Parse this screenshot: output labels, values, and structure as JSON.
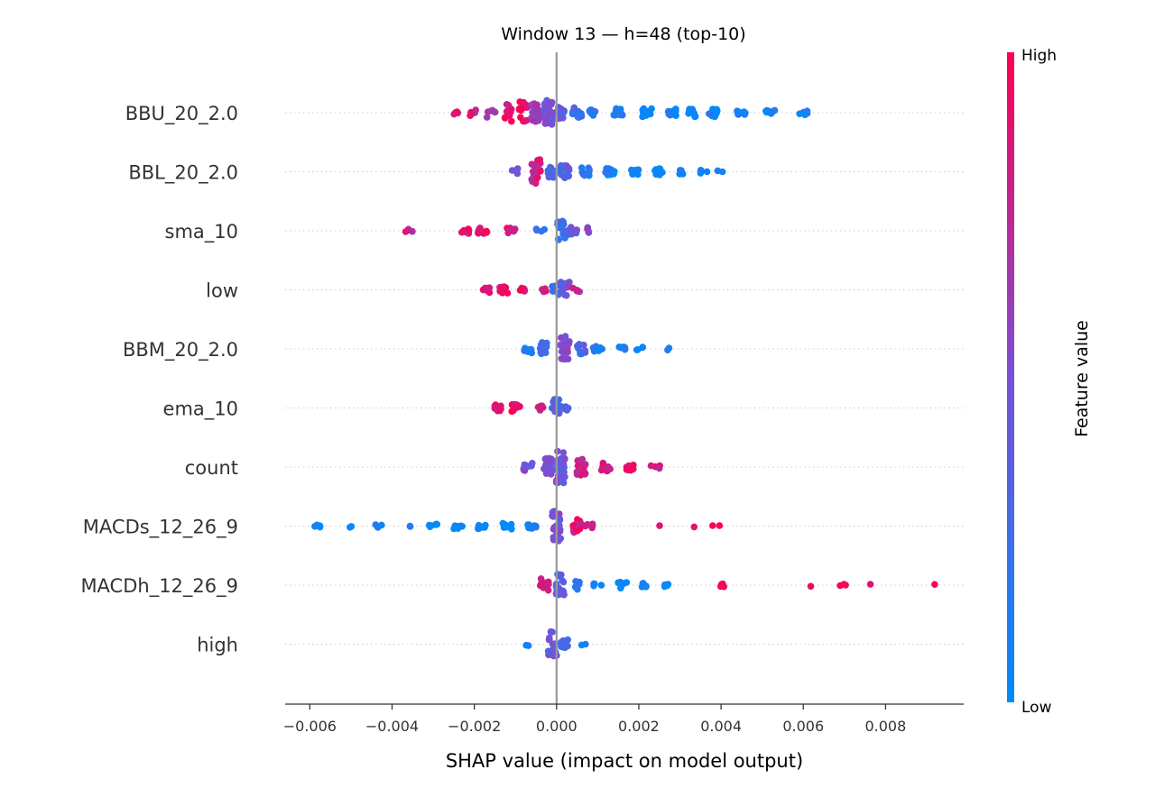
{
  "chart_data": {
    "type": "scatter",
    "subtype": "shap-beeswarm",
    "title": "Window 13 — h=48 (top-10)",
    "xlabel": "SHAP value (impact on model output)",
    "xlim": [
      -0.0066,
      0.0099
    ],
    "xticks": [
      -0.006,
      -0.004,
      -0.002,
      0.0,
      0.002,
      0.004,
      0.006,
      0.008
    ],
    "xtick_labels": [
      "−0.006",
      "−0.004",
      "−0.002",
      "0.000",
      "0.002",
      "0.004",
      "0.006",
      "0.008"
    ],
    "zero_line": 0.0,
    "grid": false,
    "features": [
      {
        "name": "BBU_20_2.0",
        "clusters": [
          [
            -0.0024,
            0,
            0.85,
            4
          ],
          [
            -0.002,
            0.2,
            0.8,
            5
          ],
          [
            -0.0016,
            0.5,
            0.7,
            6
          ],
          [
            -0.0012,
            0.7,
            0.9,
            12
          ],
          [
            -0.0008,
            0.6,
            0.95,
            16
          ],
          [
            -0.0005,
            0.3,
            0.6,
            20
          ],
          [
            -0.0002,
            0.4,
            0.5,
            30
          ],
          [
            0.0001,
            0.2,
            0.4,
            14
          ],
          [
            0.0005,
            0.15,
            0.3,
            12
          ],
          [
            0.0009,
            0.0,
            0.2,
            12
          ],
          [
            0.0015,
            0.0,
            0.1,
            14
          ],
          [
            0.0022,
            0,
            0.05,
            14
          ],
          [
            0.0028,
            0,
            0.05,
            12
          ],
          [
            0.0033,
            0,
            0.05,
            14
          ],
          [
            0.0038,
            0,
            0.08,
            14
          ],
          [
            0.0045,
            0,
            0.1,
            8
          ],
          [
            0.0052,
            0,
            0.1,
            8
          ],
          [
            0.006,
            0,
            0.1,
            6
          ]
        ]
      },
      {
        "name": "BBL_20_2.0",
        "clusters": [
          [
            -0.001,
            0.15,
            0.4,
            6
          ],
          [
            -0.0005,
            0.4,
            0.8,
            28
          ],
          [
            -0.0001,
            0.3,
            0.3,
            12
          ],
          [
            0.0002,
            0.1,
            0.35,
            18
          ],
          [
            0.0007,
            0.05,
            0.2,
            12
          ],
          [
            0.0013,
            0,
            0.08,
            12
          ],
          [
            0.0019,
            0,
            0.06,
            10
          ],
          [
            0.0025,
            0,
            0.05,
            10
          ],
          [
            0.003,
            0,
            0.05,
            6
          ],
          [
            0.0036,
            0,
            0.05,
            4
          ],
          [
            0.004,
            0,
            0.05,
            2
          ]
        ]
      },
      {
        "name": "sma_10",
        "clusters": [
          [
            -0.0036,
            0,
            0.8,
            4
          ],
          [
            -0.0022,
            0,
            0.9,
            8
          ],
          [
            -0.0018,
            0,
            0.95,
            12
          ],
          [
            -0.0011,
            0,
            0.85,
            8
          ],
          [
            -0.0004,
            0,
            0.15,
            4
          ],
          [
            0.0001,
            0.5,
            0.3,
            16
          ],
          [
            0.0004,
            0,
            0.4,
            12
          ],
          [
            0.0008,
            0.4,
            0.55,
            4
          ]
        ]
      },
      {
        "name": "low",
        "clusters": [
          [
            -0.0017,
            0,
            0.85,
            8
          ],
          [
            -0.0013,
            0,
            0.95,
            12
          ],
          [
            -0.0008,
            0,
            0.85,
            6
          ],
          [
            -0.0003,
            0,
            0.8,
            4
          ],
          [
            0.0,
            0.3,
            0.2,
            8
          ],
          [
            0.0002,
            0.4,
            0.45,
            14
          ],
          [
            0.0005,
            0,
            0.7,
            4
          ]
        ]
      },
      {
        "name": "BBM_20_2.0",
        "clusters": [
          [
            -0.0007,
            0.2,
            0.1,
            8
          ],
          [
            -0.0003,
            0.3,
            0.2,
            12
          ],
          [
            0.0002,
            0.5,
            0.5,
            22
          ],
          [
            0.0006,
            0.3,
            0.3,
            10
          ],
          [
            0.001,
            0,
            0.1,
            8
          ],
          [
            0.0016,
            0,
            0.1,
            6
          ],
          [
            0.002,
            0,
            0.05,
            4
          ],
          [
            0.0027,
            0,
            0.05,
            2
          ]
        ]
      },
      {
        "name": "ema_10",
        "clusters": [
          [
            -0.0014,
            0,
            0.9,
            10
          ],
          [
            -0.001,
            0,
            0.95,
            12
          ],
          [
            -0.0004,
            0,
            0.8,
            6
          ],
          [
            0.0,
            0.45,
            0.3,
            14
          ],
          [
            0.0003,
            0,
            0.4,
            6
          ]
        ]
      },
      {
        "name": "count",
        "clusters": [
          [
            -0.0007,
            0.15,
            0.5,
            8
          ],
          [
            -0.0002,
            0.3,
            0.5,
            18
          ],
          [
            0.0001,
            0.6,
            0.45,
            28
          ],
          [
            0.0006,
            0.35,
            0.8,
            16
          ],
          [
            0.0012,
            0,
            0.85,
            14
          ],
          [
            0.0018,
            0,
            0.9,
            10
          ],
          [
            0.0024,
            0,
            0.85,
            4
          ]
        ]
      },
      {
        "name": "MACDs_12_26_9",
        "clusters": [
          [
            -0.0058,
            0,
            0.05,
            4
          ],
          [
            -0.005,
            0,
            0.05,
            2
          ],
          [
            -0.0043,
            0,
            0.05,
            3
          ],
          [
            -0.0036,
            0,
            0.05,
            2
          ],
          [
            -0.003,
            0,
            0.05,
            6
          ],
          [
            -0.0024,
            0,
            0.05,
            8
          ],
          [
            -0.0018,
            0,
            0.05,
            8
          ],
          [
            -0.0012,
            0,
            0.05,
            10
          ],
          [
            -0.0006,
            0,
            0.1,
            10
          ],
          [
            0.0,
            0.55,
            0.5,
            30
          ],
          [
            0.0005,
            0.35,
            0.85,
            14
          ],
          [
            0.0008,
            0,
            0.9,
            6
          ],
          [
            0.0026,
            0,
            0.9,
            1
          ],
          [
            0.0034,
            0,
            0.85,
            1
          ],
          [
            0.0039,
            0,
            0.95,
            2
          ]
        ]
      },
      {
        "name": "MACDh_12_26_9",
        "clusters": [
          [
            -0.0003,
            0.3,
            0.8,
            12
          ],
          [
            0.0001,
            0.5,
            0.4,
            20
          ],
          [
            0.0005,
            0.2,
            0.15,
            8
          ],
          [
            0.001,
            0,
            0.05,
            4
          ],
          [
            0.0016,
            0,
            0.05,
            10
          ],
          [
            0.0021,
            0,
            0.05,
            6
          ],
          [
            0.0027,
            0,
            0.05,
            4
          ],
          [
            0.004,
            0,
            0.95,
            4
          ],
          [
            0.0062,
            0,
            0.9,
            1
          ],
          [
            0.007,
            0,
            0.9,
            3
          ],
          [
            0.0076,
            0,
            0.9,
            1
          ],
          [
            0.0092,
            0,
            0.95,
            1
          ]
        ]
      },
      {
        "name": "high",
        "clusters": [
          [
            -0.0007,
            0,
            0.1,
            2
          ],
          [
            -0.0001,
            0.7,
            0.4,
            20
          ],
          [
            0.0002,
            0.3,
            0.3,
            8
          ],
          [
            0.0007,
            0,
            0.05,
            2
          ]
        ]
      }
    ],
    "point_data_format": "clusters: [x_center_shap, x_spread_shap, feature_value_0to1, count]",
    "colorbar": {
      "label": "Feature value",
      "high_label": "High",
      "low_label": "Low",
      "low_color": "#008bfb",
      "high_color": "#ff0052"
    },
    "colors": {
      "line_zero": "#999999",
      "axis": "#333333",
      "row_guide": "#cccccc"
    }
  }
}
